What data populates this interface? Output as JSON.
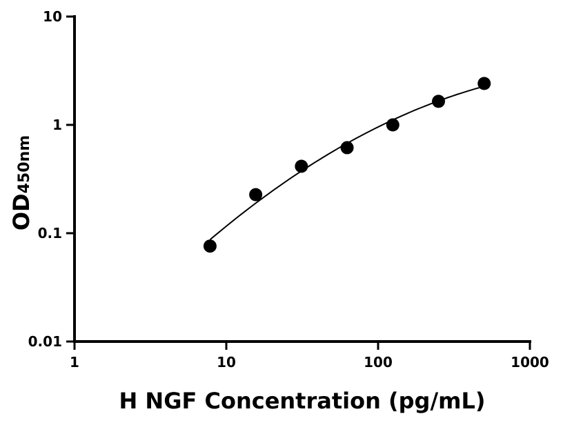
{
  "chart_data": {
    "type": "scatter",
    "title": "",
    "xlabel": "H NGF Concentration (pg/mL)",
    "ylabel_main": "OD",
    "ylabel_sub": "450nm",
    "xscale": "log",
    "yscale": "log",
    "xlim": [
      1,
      1000
    ],
    "ylim": [
      0.01,
      10
    ],
    "x_ticks": [
      "1",
      "10",
      "100",
      "1000"
    ],
    "y_ticks": [
      "0.01",
      "0.1",
      "1",
      "10"
    ],
    "grid": false,
    "legend": "none",
    "series": [
      {
        "x": [
          7.8125,
          15.625,
          31.25,
          62.5,
          125,
          250,
          500
        ],
        "y": [
          0.076,
          0.227,
          0.415,
          0.616,
          1.0,
          1.65,
          2.41
        ],
        "fit_curve": true,
        "color": "#000000"
      }
    ]
  }
}
